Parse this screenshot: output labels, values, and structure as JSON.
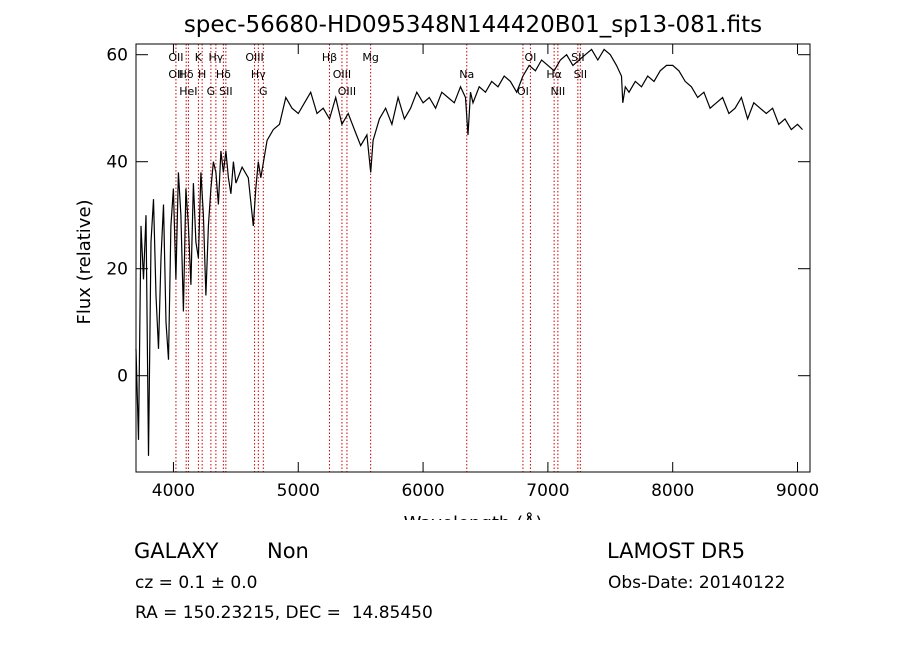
{
  "chart_data": {
    "type": "line",
    "title": "spec-56680-HD095348N144420B01_sp13-081.fits",
    "xlabel": "Wavelength (Å)",
    "ylabel": "Flux (relative)",
    "xlim": [
      3700,
      9100
    ],
    "ylim": [
      -18,
      62
    ],
    "x_ticks": [
      4000,
      5000,
      6000,
      7000,
      8000,
      9000
    ],
    "y_ticks": [
      0,
      20,
      40,
      60
    ],
    "grid": false,
    "series": [
      {
        "x": [
          3700,
          3720,
          3740,
          3760,
          3780,
          3800,
          3820,
          3840,
          3860,
          3880,
          3900,
          3920,
          3940,
          3960,
          3980,
          4000,
          4020,
          4040,
          4060,
          4080,
          4100,
          4120,
          4140,
          4160,
          4180,
          4200,
          4220,
          4240,
          4260,
          4280,
          4300,
          4320,
          4340,
          4360,
          4380,
          4400,
          4420,
          4440,
          4460,
          4480,
          4500,
          4550,
          4600,
          4640,
          4660,
          4680,
          4700,
          4750,
          4800,
          4850,
          4900,
          4950,
          5000,
          5050,
          5100,
          5150,
          5200,
          5250,
          5300,
          5350,
          5400,
          5450,
          5500,
          5550,
          5580,
          5600,
          5650,
          5700,
          5750,
          5800,
          5850,
          5900,
          5950,
          6000,
          6050,
          6100,
          6150,
          6200,
          6250,
          6300,
          6340,
          6360,
          6380,
          6400,
          6450,
          6500,
          6550,
          6600,
          6650,
          6700,
          6750,
          6800,
          6850,
          6900,
          6950,
          7000,
          7050,
          7100,
          7150,
          7200,
          7250,
          7300,
          7350,
          7400,
          7450,
          7500,
          7550,
          7590,
          7600,
          7620,
          7650,
          7700,
          7750,
          7800,
          7850,
          7900,
          7950,
          8000,
          8050,
          8100,
          8150,
          8200,
          8250,
          8300,
          8350,
          8400,
          8450,
          8500,
          8550,
          8600,
          8650,
          8700,
          8750,
          8800,
          8850,
          8900,
          8950,
          9000,
          9040
        ],
        "y": [
          5,
          -12,
          28,
          18,
          30,
          -15,
          25,
          33,
          15,
          5,
          22,
          32,
          10,
          3,
          28,
          35,
          18,
          38,
          30,
          12,
          35,
          28,
          17,
          36,
          25,
          22,
          38,
          30,
          15,
          28,
          35,
          40,
          38,
          32,
          42,
          38,
          42,
          37,
          34,
          40,
          36,
          39,
          37,
          28,
          35,
          40,
          37,
          44,
          46,
          47,
          52,
          50,
          49,
          51,
          53,
          49,
          50,
          48,
          52,
          47,
          49,
          46,
          43,
          45,
          38,
          44,
          48,
          50,
          47,
          52,
          48,
          50,
          53,
          51,
          52,
          50,
          53,
          52,
          51,
          54,
          52,
          45,
          53,
          51,
          54,
          53,
          55,
          54,
          56,
          55,
          53,
          56,
          58,
          57,
          59,
          58,
          57,
          59,
          60,
          58,
          59,
          60,
          61,
          59,
          61,
          60,
          58,
          56,
          51,
          54,
          53,
          55,
          54,
          56,
          55,
          57,
          58,
          58,
          57,
          55,
          54,
          52,
          53,
          50,
          51,
          52,
          49,
          50,
          52,
          48,
          51,
          50,
          49,
          50,
          47,
          48,
          46,
          47,
          46
        ]
      }
    ],
    "lines": [
      {
        "x": 4020,
        "labels": [
          "OII",
          "OII"
        ]
      },
      {
        "x": 4102,
        "labels": [
          "Hδ"
        ]
      },
      {
        "x": 4120,
        "labels": [
          "HeI"
        ]
      },
      {
        "x": 4200,
        "labels": [
          "K"
        ]
      },
      {
        "x": 4230,
        "labels": [
          "H"
        ]
      },
      {
        "x": 4300,
        "labels": [
          "G"
        ]
      },
      {
        "x": 4340,
        "labels": [
          "Hγ"
        ]
      },
      {
        "x": 4400,
        "labels": [
          "Hδ"
        ]
      },
      {
        "x": 4420,
        "labels": [
          "SII"
        ]
      },
      {
        "x": 4650,
        "labels": [
          "OIII"
        ]
      },
      {
        "x": 4680,
        "labels": [
          "Hγ"
        ]
      },
      {
        "x": 4720,
        "labels": [
          "G"
        ]
      },
      {
        "x": 5250,
        "labels": [
          "Hβ"
        ]
      },
      {
        "x": 5350,
        "labels": [
          "OIII"
        ]
      },
      {
        "x": 5390,
        "labels": [
          "OIII"
        ]
      },
      {
        "x": 5580,
        "labels": [
          "Mg"
        ]
      },
      {
        "x": 6350,
        "labels": [
          "Na"
        ]
      },
      {
        "x": 6800,
        "labels": [
          "OI"
        ]
      },
      {
        "x": 6860,
        "labels": [
          "OI"
        ]
      },
      {
        "x": 7050,
        "labels": [
          "Hα"
        ]
      },
      {
        "x": 7080,
        "labels": [
          "NII"
        ]
      },
      {
        "x": 7240,
        "labels": [
          "SII"
        ]
      },
      {
        "x": 7260,
        "labels": [
          "SII"
        ]
      }
    ],
    "line_color": "#cc0000"
  },
  "info": {
    "class": "GALAXY",
    "subclass": "Non",
    "cz": "cz = 0.1 ± 0.0",
    "radec": "RA = 150.23215, DEC =  14.85450",
    "survey": "LAMOST DR5",
    "obsdate": "Obs-Date: 20140122"
  }
}
